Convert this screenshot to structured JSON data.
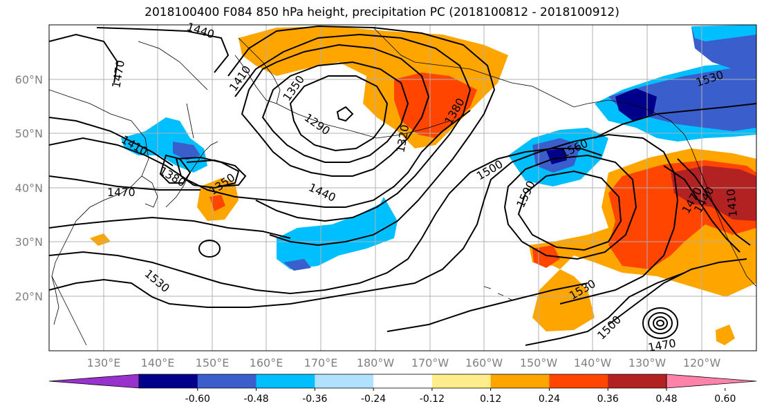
{
  "title": "2018100400 F084 850 hPa height, precipitation PC (2018100812 - 2018100912)",
  "lat_labels": [
    "60°N",
    "50°N",
    "40°N",
    "30°N",
    "20°N"
  ],
  "lon_labels": [
    "130°E",
    "140°E",
    "150°E",
    "160°E",
    "170°E",
    "180°W",
    "170°W",
    "160°W",
    "150°W",
    "140°W",
    "130°W",
    "120°W"
  ],
  "contour_labels": [
    "1440",
    "1470",
    "1410",
    "1350",
    "1290",
    "1320",
    "1380",
    "1410",
    "1380",
    "1350",
    "1470",
    "1440",
    "1500",
    "1560",
    "1590",
    "1530",
    "1530",
    "1500",
    "1470",
    "1530",
    "1470",
    "1440",
    "1410"
  ],
  "colorbar": {
    "tick_labels": [
      "-0.60",
      "-0.48",
      "-0.36",
      "-0.24",
      "-0.12",
      "0.12",
      "0.24",
      "0.36",
      "0.48",
      "0.60"
    ],
    "colors": [
      "#9932cc",
      "#00008b",
      "#3a5fcd",
      "#00bfff",
      "#b0e2ff",
      "#ffffff",
      "#ffec8b",
      "#ffa500",
      "#ff4500",
      "#b22222",
      "#ff82ab"
    ]
  }
}
